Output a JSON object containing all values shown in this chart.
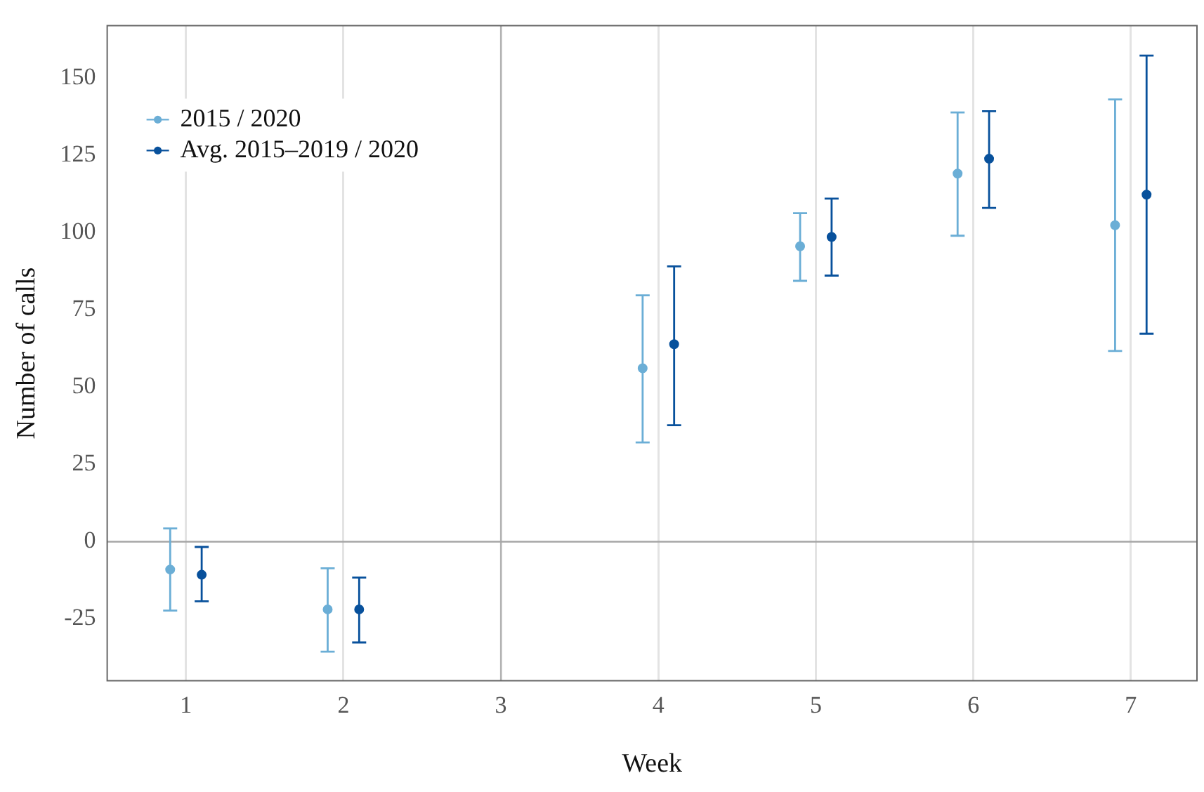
{
  "chart_data": {
    "type": "scatter",
    "xlabel": "Week",
    "ylabel": "Number of calls",
    "xlim": [
      0.5,
      7.42
    ],
    "xticks": [
      1,
      2,
      3,
      4,
      5,
      6,
      7
    ],
    "ylim": [
      -45,
      167
    ],
    "yticks": [
      -25,
      0,
      25,
      50,
      75,
      100,
      125,
      150
    ],
    "grid": "x",
    "legend": "top left",
    "marker": "circle",
    "ref_lines": [
      {
        "axis": "x",
        "value": 3,
        "label": null,
        "color": "#b3b3b3"
      },
      {
        "axis": "y",
        "value": 0,
        "label": null,
        "color": "#a6a6a6"
      }
    ],
    "series": [
      {
        "name": "2015 / 2020",
        "color": "#6baed6",
        "x": [
          0.9,
          1.9,
          3.9,
          4.9,
          5.9,
          6.9
        ],
        "values": [
          -9.0,
          -21.9,
          56.1,
          95.6,
          119.1,
          102.4
        ],
        "errors": [
          [
            -22.3,
            4.3
          ],
          [
            -35.6,
            -8.6
          ],
          [
            32.1,
            79.7
          ],
          [
            84.4,
            106.3
          ],
          [
            99,
            138.9
          ],
          [
            61.7,
            143.1
          ]
        ]
      },
      {
        "name": "Avg. 2015–2019 / 2020",
        "color": "#08519c",
        "x": [
          1.1,
          2.1,
          4.1,
          5.1,
          6.1,
          7.1
        ],
        "values": [
          -10.7,
          -21.9,
          63.9,
          98.6,
          123.9,
          112.3
        ],
        "errors": [
          [
            -19.3,
            -1.7
          ],
          [
            -32.6,
            -11.6
          ],
          [
            37.7,
            89.1
          ],
          [
            86.1,
            111
          ],
          [
            108,
            139.3
          ],
          [
            67.3,
            157.3
          ]
        ]
      }
    ]
  }
}
